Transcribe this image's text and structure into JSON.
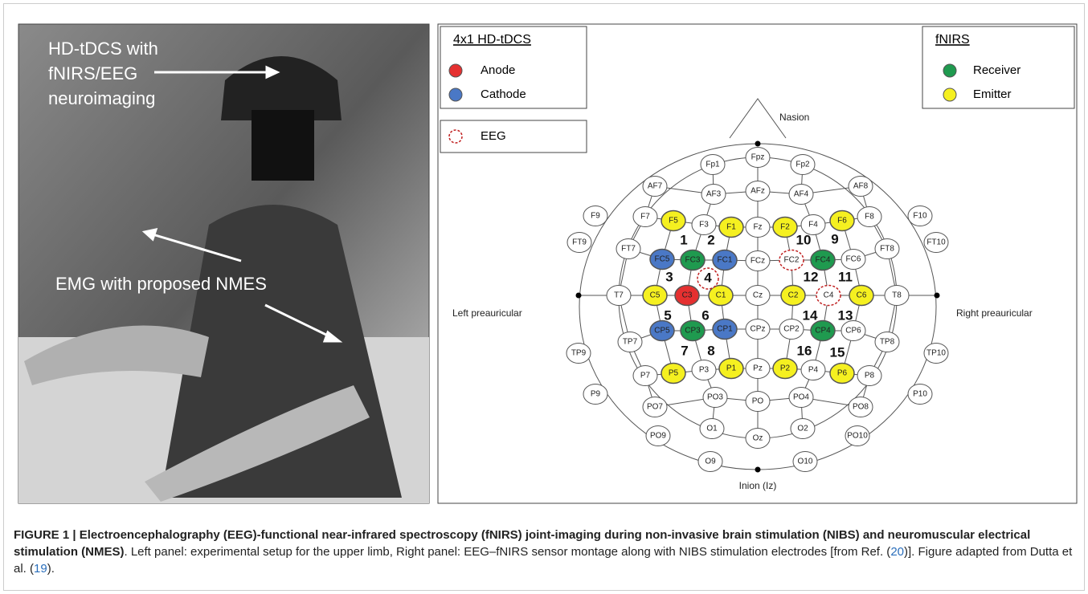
{
  "photo": {
    "annotations": [
      "HD-tDCS with",
      "fNIRS/EEG",
      "neuroimaging",
      "EMG with proposed NMES"
    ]
  },
  "legend_tdcs": {
    "title": "4x1 HD-tDCS",
    "items": [
      "Anode",
      "Cathode"
    ]
  },
  "legend_eeg": {
    "items": [
      "EEG"
    ]
  },
  "legend_fnirs": {
    "title": "fNIRS",
    "items": [
      "Receiver",
      "Emitter"
    ]
  },
  "montage": {
    "landmarks": [
      "Nasion",
      "Inion (Iz)",
      "Left preauricular",
      "Right preauricular"
    ],
    "electrodes": [
      "Fp1",
      "Fpz",
      "Fp2",
      "AF7",
      "AF3",
      "AFz",
      "AF4",
      "AF8",
      "F9",
      "F7",
      "F5",
      "F3",
      "F1",
      "Fz",
      "F2",
      "F4",
      "F6",
      "F8",
      "F10",
      "FT9",
      "FT7",
      "FC5",
      "FC3",
      "FC1",
      "FCz",
      "FC2",
      "FC4",
      "FC6",
      "FT8",
      "FT10",
      "T7",
      "C5",
      "C3",
      "C1",
      "Cz",
      "C2",
      "C4",
      "C6",
      "T8",
      "TP9",
      "TP7",
      "CP5",
      "CP3",
      "CP1",
      "CPz",
      "CP2",
      "CP4",
      "CP6",
      "TP8",
      "TP10",
      "P9",
      "P7",
      "P5",
      "P3",
      "P1",
      "Pz",
      "P2",
      "P4",
      "P6",
      "P8",
      "P10",
      "PO7",
      "PO3",
      "PO",
      "PO4",
      "PO8",
      "PO9",
      "O1",
      "Oz",
      "O2",
      "PO10",
      "O9",
      "O10"
    ],
    "channels": [
      "1",
      "2",
      "3",
      "4",
      "5",
      "6",
      "7",
      "8",
      "9",
      "10",
      "11",
      "12",
      "13",
      "14",
      "15",
      "16"
    ]
  },
  "caption": {
    "label": "FIGURE 1 |",
    "title": "Electroencephalography (EEG)-functional near-infrared spectroscopy (fNIRS) joint-imaging during non-invasive brain stimulation (NIBS) and neuromuscular electrical stimulation (NMES)",
    "text1": ". Left panel: experimental setup for the upper limb, Right panel: EEG–fNIRS sensor montage along with NIBS stimulation electrodes [from Ref. (",
    "ref1": "20",
    "text2": ")]. Figure adapted from Dutta et al. (",
    "ref2": "19",
    "text3": ")."
  }
}
